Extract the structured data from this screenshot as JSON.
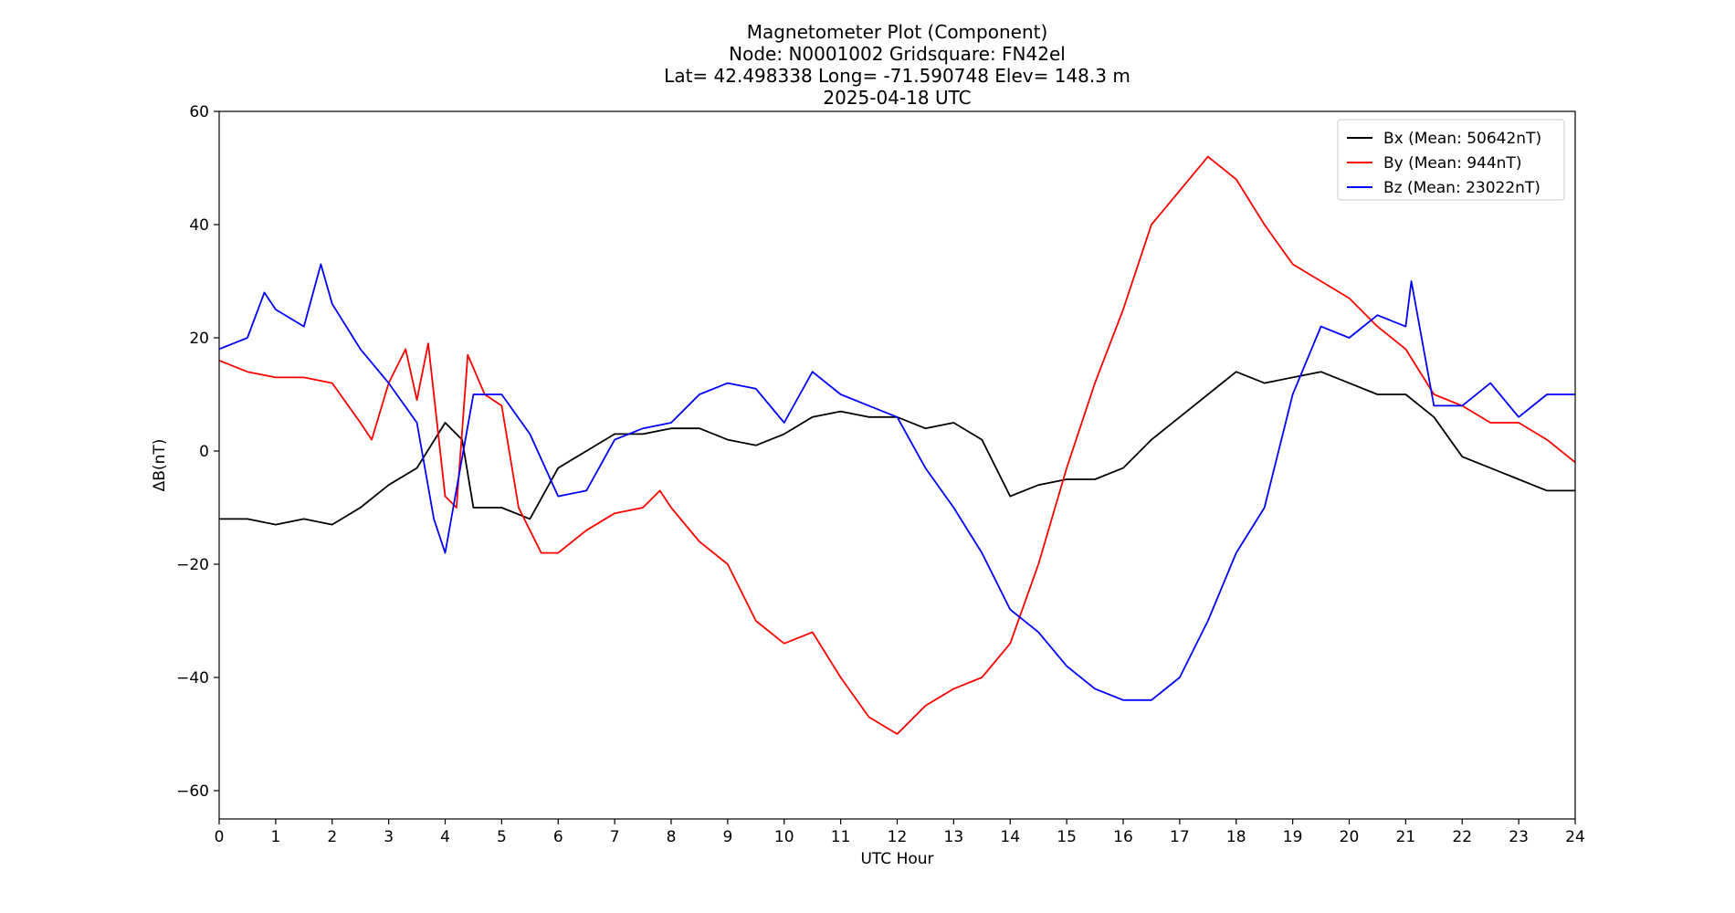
{
  "chart_data": {
    "type": "line",
    "title_lines": [
      "Magnetometer Plot (Component)",
      "Node:  N0001002     Gridsquare:  FN42el",
      "Lat= 42.498338    Long= -71.590748    Elev= 148.3 m",
      "2025-04-18  UTC"
    ],
    "xlabel": "UTC Hour",
    "ylabel": "ΔB(nT)",
    "xlim": [
      0,
      24
    ],
    "ylim": [
      -65,
      60
    ],
    "x_ticks": [
      0,
      1,
      2,
      3,
      4,
      5,
      6,
      7,
      8,
      9,
      10,
      11,
      12,
      13,
      14,
      15,
      16,
      17,
      18,
      19,
      20,
      21,
      22,
      23,
      24
    ],
    "y_ticks": [
      60,
      40,
      20,
      0,
      -20,
      -40,
      -60
    ],
    "y_tick_labels": [
      "60",
      "40",
      "20",
      "0",
      "−20",
      "−40",
      "−60"
    ],
    "grid": false,
    "legend_position": "top-right",
    "series": [
      {
        "name": "Bx (Mean: 50642nT)",
        "color": "#000000",
        "x": [
          0,
          0.5,
          1,
          1.5,
          2,
          2.5,
          3,
          3.5,
          4,
          4.3,
          4.5,
          5,
          5.5,
          6,
          6.5,
          7,
          7.5,
          8,
          8.5,
          9,
          9.5,
          10,
          10.5,
          11,
          11.5,
          12,
          12.5,
          13,
          13.5,
          14,
          14.5,
          15,
          15.5,
          16,
          16.5,
          17,
          17.5,
          18,
          18.5,
          19,
          19.5,
          20,
          20.5,
          21,
          21.5,
          22,
          22.5,
          23,
          23.5,
          24
        ],
        "y": [
          -12,
          -12,
          -13,
          -12,
          -13,
          -10,
          -6,
          -3,
          5,
          2,
          -10,
          -10,
          -12,
          -3,
          0,
          3,
          3,
          4,
          4,
          2,
          1,
          3,
          6,
          7,
          6,
          6,
          4,
          5,
          2,
          -8,
          -6,
          -5,
          -5,
          -3,
          2,
          6,
          10,
          14,
          12,
          13,
          14,
          12,
          10,
          10,
          6,
          -1,
          -3,
          -5,
          -7,
          -7
        ]
      },
      {
        "name": "By (Mean: 944nT)",
        "color": "#ff0000",
        "x": [
          0,
          0.5,
          1,
          1.5,
          2,
          2.5,
          2.7,
          3,
          3.3,
          3.5,
          3.7,
          4,
          4.2,
          4.4,
          4.7,
          5,
          5.3,
          5.7,
          6,
          6.5,
          7,
          7.5,
          7.8,
          8,
          8.5,
          9,
          9.5,
          10,
          10.5,
          11,
          11.5,
          12,
          12.5,
          13,
          13.5,
          14,
          14.5,
          15,
          15.5,
          16,
          16.5,
          17,
          17.5,
          18,
          18.5,
          19,
          19.5,
          20,
          20.5,
          21,
          21.5,
          22,
          22.5,
          23,
          23.5,
          24
        ],
        "y": [
          16,
          14,
          13,
          13,
          12,
          5,
          2,
          12,
          18,
          9,
          19,
          -8,
          -10,
          17,
          10,
          8,
          -10,
          -18,
          -18,
          -14,
          -11,
          -10,
          -7,
          -10,
          -16,
          -20,
          -30,
          -34,
          -32,
          -40,
          -47,
          -50,
          -45,
          -42,
          -40,
          -34,
          -20,
          -3,
          12,
          25,
          40,
          46,
          52,
          48,
          40,
          33,
          30,
          27,
          22,
          18,
          10,
          8,
          5,
          5,
          2,
          -2
        ]
      },
      {
        "name": "Bz (Mean: 23022nT)",
        "color": "#0000ff",
        "x": [
          0,
          0.5,
          0.8,
          1,
          1.5,
          1.8,
          2,
          2.5,
          3,
          3.5,
          3.8,
          4,
          4.5,
          5,
          5.5,
          6,
          6.5,
          7,
          7.5,
          8,
          8.5,
          9,
          9.5,
          10,
          10.5,
          11,
          11.5,
          12,
          12.5,
          13,
          13.5,
          14,
          14.5,
          15,
          15.5,
          16,
          16.5,
          17,
          17.5,
          18,
          18.5,
          19,
          19.5,
          20,
          20.5,
          21,
          21.1,
          21.5,
          22,
          22.5,
          23,
          23.5,
          24
        ],
        "y": [
          18,
          20,
          28,
          25,
          22,
          33,
          26,
          18,
          12,
          5,
          -12,
          -18,
          10,
          10,
          3,
          -8,
          -7,
          2,
          4,
          5,
          10,
          12,
          11,
          5,
          14,
          10,
          8,
          6,
          -3,
          -10,
          -18,
          -28,
          -32,
          -38,
          -42,
          -44,
          -44,
          -40,
          -30,
          -18,
          -10,
          10,
          22,
          20,
          24,
          22,
          30,
          8,
          8,
          12,
          6,
          10,
          10
        ]
      }
    ]
  }
}
